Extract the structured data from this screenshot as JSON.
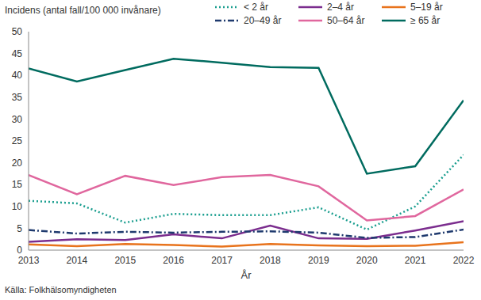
{
  "chart_data": {
    "type": "line",
    "y_label": "Incidens (antal fall/100 000 invånare)",
    "x_label": "År",
    "source": "Källa: Folkhälsomyndigheten",
    "x": [
      2013,
      2014,
      2015,
      2016,
      2017,
      2018,
      2019,
      2020,
      2021,
      2022
    ],
    "xlim": [
      2013,
      2022
    ],
    "xticks": [
      2013,
      2014,
      2015,
      2016,
      2017,
      2018,
      2019,
      2020,
      2021,
      2022
    ],
    "ylim": [
      0,
      50
    ],
    "yticks": [
      0,
      5,
      10,
      15,
      20,
      25,
      30,
      35,
      40,
      45,
      50
    ],
    "grid": false,
    "legend": "top right",
    "series": [
      {
        "name": "< 2 år",
        "color": "#1a9e8f",
        "line_style": "dotted",
        "values": [
          11.3,
          10.7,
          6.3,
          8.3,
          8.0,
          8.0,
          9.8,
          4.7,
          10.0,
          21.8
        ]
      },
      {
        "name": "2–4 år",
        "color": "#7b2d8e",
        "line_style": "solid",
        "values": [
          1.9,
          2.5,
          2.3,
          3.6,
          2.7,
          5.6,
          2.7,
          2.6,
          4.5,
          6.6
        ]
      },
      {
        "name": "5–19 år",
        "color": "#e8731c",
        "line_style": "solid",
        "values": [
          1.3,
          0.9,
          1.4,
          1.2,
          0.8,
          1.4,
          1.1,
          0.9,
          1.0,
          1.8
        ]
      },
      {
        "name": "20–49 år",
        "color": "#1f3a6e",
        "line_style": "dashdot",
        "values": [
          4.6,
          3.8,
          4.2,
          4.0,
          4.2,
          4.3,
          4.0,
          2.8,
          3.0,
          4.7
        ]
      },
      {
        "name": "50–64 år",
        "color": "#e0679e",
        "line_style": "solid",
        "values": [
          17.2,
          12.8,
          17.0,
          14.9,
          16.7,
          17.2,
          14.6,
          6.8,
          7.8,
          13.9
        ]
      },
      {
        "name": "≥ 65 år",
        "color": "#006b5f",
        "line_style": "solid",
        "values": [
          41.6,
          38.6,
          41.2,
          43.8,
          42.9,
          41.9,
          41.7,
          17.5,
          19.2,
          34.3
        ]
      }
    ]
  }
}
